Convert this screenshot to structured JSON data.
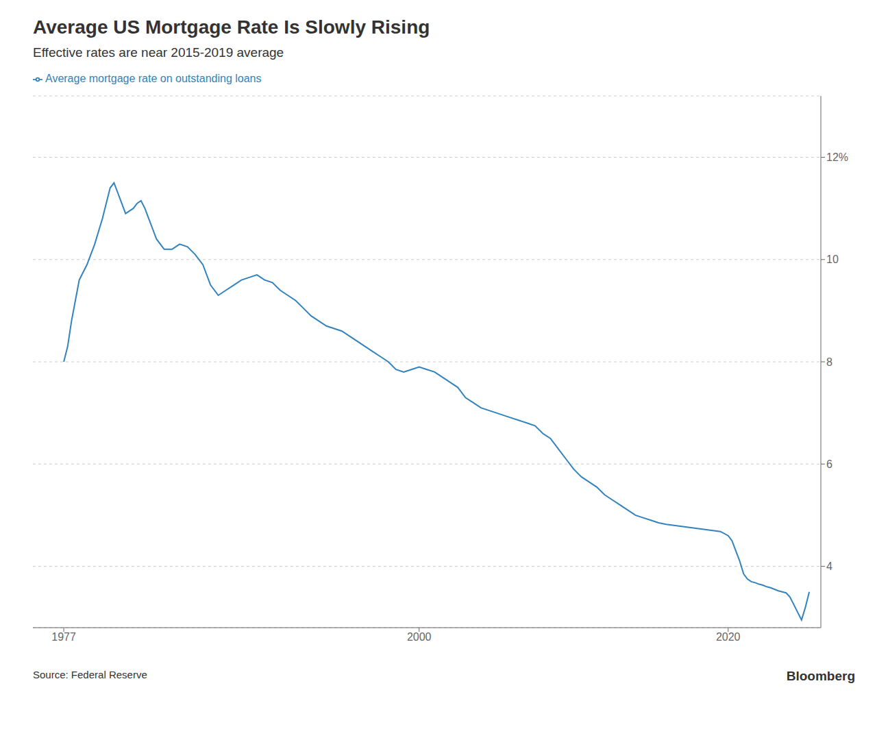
{
  "chart_data": {
    "type": "line",
    "title": "Average US Mortgage Rate Is Slowly Rising",
    "subtitle": "Effective rates are near 2015-2019 average",
    "annotations": [
      "Source: Federal Reserve",
      "Bloomberg"
    ],
    "x": [
      1977,
      1977.25,
      1977.5,
      1977.75,
      1978,
      1978.5,
      1979,
      1979.5,
      1980,
      1980.25,
      1980.5,
      1980.75,
      1981,
      1981.25,
      1981.5,
      1981.75,
      1982,
      1982.25,
      1982.5,
      1982.75,
      1983,
      1983.5,
      1984,
      1984.5,
      1985,
      1985.5,
      1986,
      1986.5,
      1987,
      1987.5,
      1988,
      1988.5,
      1989,
      1989.5,
      1990,
      1990.5,
      1991,
      1991.5,
      1992,
      1992.5,
      1993,
      1993.5,
      1994,
      1994.5,
      1995,
      1995.5,
      1996,
      1996.5,
      1997,
      1997.5,
      1998,
      1998.5,
      1999,
      1999.5,
      2000,
      2000.5,
      2001,
      2001.5,
      2002,
      2002.5,
      2003,
      2003.5,
      2004,
      2004.5,
      2005,
      2005.5,
      2006,
      2006.5,
      2007,
      2007.5,
      2008,
      2008.5,
      2009,
      2009.5,
      2010,
      2010.5,
      2011,
      2011.5,
      2012,
      2012.5,
      2013,
      2013.5,
      2014,
      2014.5,
      2015,
      2015.5,
      2016,
      2016.5,
      2017,
      2017.5,
      2018,
      2018.5,
      2019,
      2019.5,
      2020,
      2020.25,
      2020.5,
      2020.75,
      2021,
      2021.25,
      2021.5,
      2021.75,
      2022,
      2022.25,
      2022.5,
      2022.75,
      2023,
      2023.25,
      2023.5,
      2023.75,
      2024,
      2024.25,
      2024.5,
      2024.75,
      2025,
      2025.25
    ],
    "series": [
      {
        "name": "Average mortgage rate on outstanding loans",
        "values": [
          8.0,
          8.3,
          8.8,
          9.2,
          9.6,
          9.9,
          10.3,
          10.8,
          11.4,
          11.5,
          11.3,
          11.1,
          10.9,
          10.95,
          11.0,
          11.1,
          11.15,
          11.0,
          10.8,
          10.6,
          10.4,
          10.2,
          10.2,
          10.3,
          10.25,
          10.1,
          9.9,
          9.5,
          9.3,
          9.4,
          9.5,
          9.6,
          9.65,
          9.7,
          9.6,
          9.55,
          9.4,
          9.3,
          9.2,
          9.05,
          8.9,
          8.8,
          8.7,
          8.65,
          8.6,
          8.5,
          8.4,
          8.3,
          8.2,
          8.1,
          8.0,
          7.85,
          7.8,
          7.85,
          7.9,
          7.85,
          7.8,
          7.7,
          7.6,
          7.5,
          7.3,
          7.2,
          7.1,
          7.05,
          7.0,
          6.95,
          6.9,
          6.85,
          6.8,
          6.75,
          6.6,
          6.5,
          6.3,
          6.1,
          5.9,
          5.75,
          5.65,
          5.55,
          5.4,
          5.3,
          5.2,
          5.1,
          5.0,
          4.95,
          4.9,
          4.85,
          4.82,
          4.8,
          4.78,
          4.76,
          4.74,
          4.72,
          4.7,
          4.68,
          4.6,
          4.5,
          4.3,
          4.1,
          3.85,
          3.75,
          3.7,
          3.68,
          3.65,
          3.63,
          3.6,
          3.58,
          3.55,
          3.52,
          3.5,
          3.48,
          3.4,
          3.25,
          3.1,
          2.95,
          3.2,
          3.5
        ]
      }
    ],
    "xlim": [
      1975,
      2026
    ],
    "xticks": [
      1977,
      2000,
      2020
    ],
    "ylim": [
      2.8,
      13.2
    ],
    "yticks": [
      4,
      6,
      8,
      10,
      {
        "value": 12,
        "label": "12%"
      }
    ],
    "grid": "y"
  }
}
